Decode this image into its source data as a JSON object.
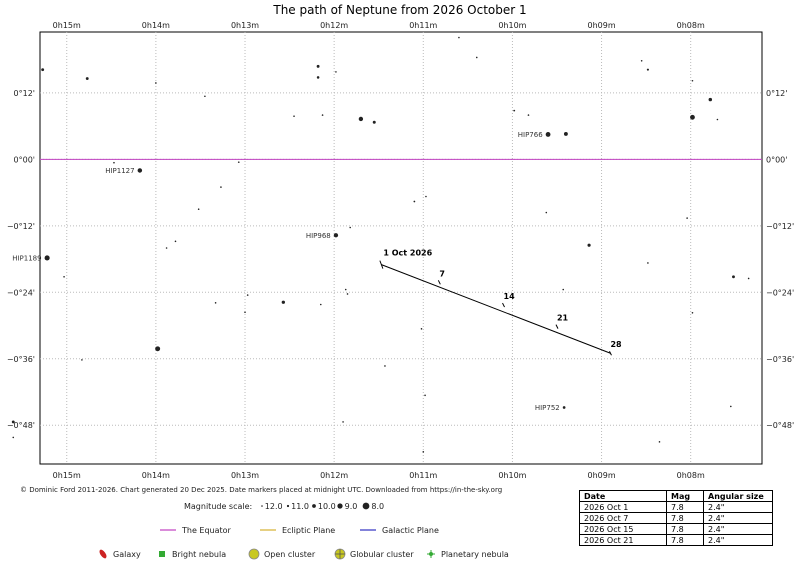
{
  "title": "The path of Neptune from 2026 October 1",
  "chart_data": {
    "type": "scatter",
    "ra_ticks": [
      "0h15m",
      "0h14m",
      "0h13m",
      "0h12m",
      "0h11m",
      "0h10m",
      "0h09m",
      "0h08m"
    ],
    "ra_tick_minutes": [
      15,
      14,
      13,
      12,
      11,
      10,
      9,
      8
    ],
    "dec_ticks": [
      "0°12'",
      "0°00'",
      "−0°12'",
      "−0°24'",
      "−0°36'",
      "−0°48'"
    ],
    "dec_tick_arcmin": [
      12,
      0,
      -12,
      -24,
      -36,
      -48
    ],
    "ra_range_minutes": [
      15.3,
      7.2
    ],
    "dec_range_arcmin": [
      23,
      -55
    ],
    "grid": true,
    "equator_dec_arcmin": 0,
    "path": {
      "name": "Neptune",
      "points": [
        {
          "label": "1 Oct 2026",
          "ra_min": 11.47,
          "dec_arcmin": -19.0
        },
        {
          "label": "7",
          "ra_min": 10.82,
          "dec_arcmin": -22.2
        },
        {
          "label": "14",
          "ra_min": 10.1,
          "dec_arcmin": -26.3
        },
        {
          "label": "21",
          "ra_min": 9.5,
          "dec_arcmin": -30.2
        },
        {
          "label": "28",
          "ra_min": 8.9,
          "dec_arcmin": -35.0
        }
      ]
    },
    "stars": [
      {
        "ra": 15.27,
        "dec": 16.2,
        "mag": 10.6
      },
      {
        "ra": 14.77,
        "dec": 14.6,
        "mag": 10.6
      },
      {
        "ra": 14.0,
        "dec": 13.8,
        "mag": 11.5
      },
      {
        "ra": 13.45,
        "dec": 11.4,
        "mag": 11.8
      },
      {
        "ra": 12.18,
        "dec": 16.8,
        "mag": 10.6
      },
      {
        "ra": 12.18,
        "dec": 14.8,
        "mag": 10.8
      },
      {
        "ra": 11.98,
        "dec": 15.8,
        "mag": 11.7
      },
      {
        "ra": 10.4,
        "dec": 18.4,
        "mag": 11.8
      },
      {
        "ra": 8.48,
        "dec": 16.2,
        "mag": 11.1
      },
      {
        "ra": 7.98,
        "dec": 14.2,
        "mag": 11.7
      },
      {
        "ra": 7.78,
        "dec": 10.8,
        "mag": 10.2
      },
      {
        "ra": 7.98,
        "dec": 7.6,
        "mag": 9.3
      },
      {
        "ra": 7.7,
        "dec": 7.2,
        "mag": 11.8
      },
      {
        "ra": 12.13,
        "dec": 8.0,
        "mag": 11.9
      },
      {
        "ra": 11.7,
        "dec": 7.3,
        "mag": 9.6
      },
      {
        "ra": 11.55,
        "dec": 6.7,
        "mag": 10.5
      },
      {
        "ra": 9.98,
        "dec": 8.8,
        "mag": 11.3
      },
      {
        "ra": 9.82,
        "dec": 8.0,
        "mag": 11.8
      },
      {
        "ra": 9.6,
        "dec": 4.5,
        "mag": 9.3,
        "label": "HIP766"
      },
      {
        "ra": 9.4,
        "dec": 4.6,
        "mag": 9.9
      },
      {
        "ra": 14.47,
        "dec": -0.6,
        "mag": 12.1
      },
      {
        "ra": 14.18,
        "dec": -2.0,
        "mag": 9.5,
        "label": "HIP1127"
      },
      {
        "ra": 13.07,
        "dec": -0.5,
        "mag": 11.9
      },
      {
        "ra": 13.27,
        "dec": -5.0,
        "mag": 11.6
      },
      {
        "ra": 13.52,
        "dec": -9.0,
        "mag": 11.6
      },
      {
        "ra": 11.1,
        "dec": -7.6,
        "mag": 11.3
      },
      {
        "ra": 10.97,
        "dec": -6.7,
        "mag": 11.8
      },
      {
        "ra": 9.62,
        "dec": -9.6,
        "mag": 11.5
      },
      {
        "ra": 8.04,
        "dec": -10.6,
        "mag": 11.6
      },
      {
        "ra": 11.82,
        "dec": -12.3,
        "mag": 11.8
      },
      {
        "ra": 11.98,
        "dec": -13.7,
        "mag": 9.6,
        "label": "HIP968"
      },
      {
        "ra": 13.88,
        "dec": -16.0,
        "mag": 11.9
      },
      {
        "ra": 13.78,
        "dec": -14.8,
        "mag": 11.8
      },
      {
        "ra": 9.14,
        "dec": -15.5,
        "mag": 10.4
      },
      {
        "ra": 15.22,
        "dec": -17.8,
        "mag": 9.1,
        "label": "HIP1189"
      },
      {
        "ra": 8.48,
        "dec": -18.7,
        "mag": 11.8
      },
      {
        "ra": 15.03,
        "dec": -21.2,
        "mag": 11.5
      },
      {
        "ra": 7.52,
        "dec": -21.2,
        "mag": 10.6
      },
      {
        "ra": 7.35,
        "dec": -21.5,
        "mag": 11.8
      },
      {
        "ra": 9.43,
        "dec": -23.5,
        "mag": 11.4
      },
      {
        "ra": 11.87,
        "dec": -23.5,
        "mag": 11.5
      },
      {
        "ra": 11.85,
        "dec": -24.3,
        "mag": 11.8
      },
      {
        "ra": 12.97,
        "dec": -24.5,
        "mag": 11.5
      },
      {
        "ra": 12.57,
        "dec": -25.8,
        "mag": 10.3
      },
      {
        "ra": 13.33,
        "dec": -25.9,
        "mag": 11.9
      },
      {
        "ra": 12.15,
        "dec": -26.2,
        "mag": 11.8
      },
      {
        "ra": 13.0,
        "dec": -27.6,
        "mag": 11.9
      },
      {
        "ra": 7.98,
        "dec": -27.7,
        "mag": 11.9
      },
      {
        "ra": 11.02,
        "dec": -30.6,
        "mag": 11.8
      },
      {
        "ra": 13.98,
        "dec": -34.2,
        "mag": 9.2
      },
      {
        "ra": 14.83,
        "dec": -36.2,
        "mag": 11.9
      },
      {
        "ra": 11.43,
        "dec": -37.3,
        "mag": 11.5
      },
      {
        "ra": 10.98,
        "dec": -42.6,
        "mag": 11.5
      },
      {
        "ra": 9.42,
        "dec": -44.8,
        "mag": 10.7,
        "label": "HIP752"
      },
      {
        "ra": 7.55,
        "dec": -44.6,
        "mag": 11.9
      },
      {
        "ra": 15.6,
        "dec": -47.4,
        "mag": 10.6
      },
      {
        "ra": 15.6,
        "dec": -50.2,
        "mag": 11.9
      },
      {
        "ra": 11.9,
        "dec": -47.4,
        "mag": 11.9
      },
      {
        "ra": 8.35,
        "dec": -51.0,
        "mag": 11.9
      },
      {
        "ra": 11.0,
        "dec": -52.8,
        "mag": 11.9
      },
      {
        "ra": 12.45,
        "dec": 7.8,
        "mag": 12.1
      },
      {
        "ra": 10.6,
        "dec": 22.0,
        "mag": 11.8
      },
      {
        "ra": 8.55,
        "dec": 17.8,
        "mag": 11.5
      }
    ]
  },
  "copyright": "© Dominic Ford 2011-2026. Chart generated 20 Dec 2025. Date markers placed at midnight UTC. Downloaded from https://in-the-sky.org",
  "magnitude_scale": {
    "label": "Magnitude scale:",
    "entries": [
      "12.0",
      "11.0",
      "10.0",
      "9.0",
      "8.0"
    ]
  },
  "line_legend": [
    {
      "label": "The Equator",
      "color": "#c040c0"
    },
    {
      "label": "Ecliptic Plane",
      "color": "#d4b030"
    },
    {
      "label": "Galactic Plane",
      "color": "#3030c0"
    }
  ],
  "object_legend": [
    {
      "label": "Galaxy",
      "icon": "galaxy-icon",
      "color": "#cc2222"
    },
    {
      "label": "Bright nebula",
      "icon": "bright-nebula-icon",
      "color": "#33aa33"
    },
    {
      "label": "Open cluster",
      "icon": "open-cluster-icon",
      "color": "#c8c820"
    },
    {
      "label": "Globular cluster",
      "icon": "globular-cluster-icon",
      "color": "#c8c820"
    },
    {
      "label": "Planetary nebula",
      "icon": "planetary-nebula-icon",
      "color": "#33aa33"
    }
  ],
  "ephemeris": {
    "headers": [
      "Date",
      "Mag",
      "Angular size"
    ],
    "rows": [
      [
        "2026 Oct 1",
        "7.8",
        "2.4\""
      ],
      [
        "2026 Oct 7",
        "7.8",
        "2.4\""
      ],
      [
        "2026 Oct 15",
        "7.8",
        "2.4\""
      ],
      [
        "2026 Oct 21",
        "7.8",
        "2.4\""
      ]
    ]
  }
}
